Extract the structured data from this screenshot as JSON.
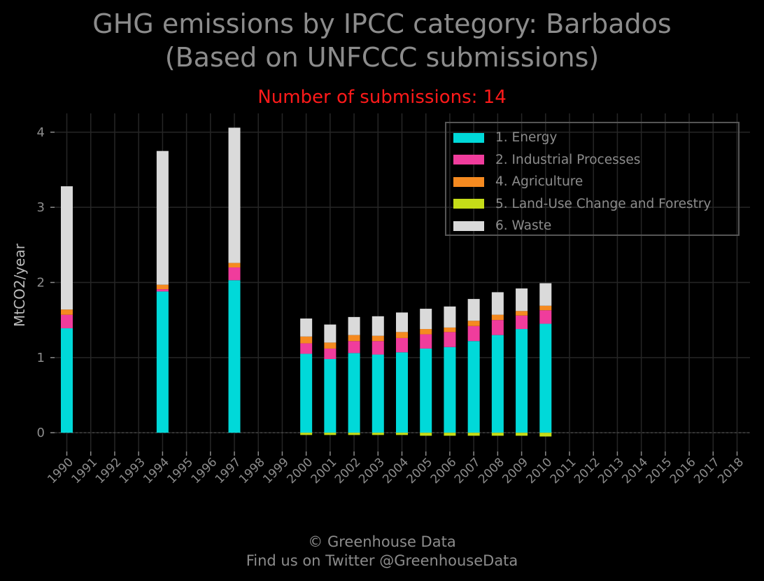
{
  "title_line1": "GHG emissions by IPCC category: Barbados",
  "title_line2": "(Based on UNFCCC submissions)",
  "subtitle": "Number of submissions: 14",
  "footer_line1": "© Greenhouse Data",
  "footer_line2": "Find us on Twitter @GreenhouseData",
  "chart_data": {
    "type": "bar",
    "stacked": true,
    "ylabel": "MtCO2/year",
    "xlabel": "",
    "ylim": [
      -0.25,
      4.25
    ],
    "yticks": [
      0,
      1,
      2,
      3,
      4
    ],
    "grid": true,
    "legend_position": "top-right",
    "categories": [
      "1990",
      "1991",
      "1992",
      "1993",
      "1994",
      "1995",
      "1996",
      "1997",
      "1998",
      "1999",
      "2000",
      "2001",
      "2002",
      "2003",
      "2004",
      "2005",
      "2006",
      "2007",
      "2008",
      "2009",
      "2010",
      "2011",
      "2012",
      "2013",
      "2014",
      "2015",
      "2016",
      "2017",
      "2018"
    ],
    "series": [
      {
        "name": "1. Energy",
        "color": "#00d9d9",
        "values": [
          1.39,
          null,
          null,
          null,
          1.88,
          null,
          null,
          2.03,
          null,
          null,
          1.05,
          0.98,
          1.06,
          1.04,
          1.07,
          1.12,
          1.14,
          1.22,
          1.3,
          1.38,
          1.45,
          null,
          null,
          null,
          null,
          null,
          null,
          null,
          null
        ]
      },
      {
        "name": "2. Industrial Processes",
        "color": "#f03c9c",
        "values": [
          0.18,
          null,
          null,
          null,
          0.03,
          null,
          null,
          0.17,
          null,
          null,
          0.14,
          0.14,
          0.16,
          0.18,
          0.19,
          0.19,
          0.2,
          0.2,
          0.2,
          0.18,
          0.18,
          null,
          null,
          null,
          null,
          null,
          null,
          null,
          null
        ]
      },
      {
        "name": "4. Agriculture",
        "color": "#f58a20",
        "values": [
          0.07,
          null,
          null,
          null,
          0.06,
          null,
          null,
          0.06,
          null,
          null,
          0.09,
          0.08,
          0.08,
          0.07,
          0.08,
          0.07,
          0.06,
          0.07,
          0.07,
          0.06,
          0.06,
          null,
          null,
          null,
          null,
          null,
          null,
          null,
          null
        ]
      },
      {
        "name": "5. Land-Use Change and Forestry",
        "color": "#c5dc18",
        "values": [
          0,
          null,
          null,
          null,
          0,
          null,
          null,
          0,
          null,
          null,
          -0.03,
          -0.03,
          -0.03,
          -0.03,
          -0.03,
          -0.04,
          -0.04,
          -0.04,
          -0.04,
          -0.04,
          -0.05,
          null,
          null,
          null,
          null,
          null,
          null,
          null,
          null
        ]
      },
      {
        "name": "6. Waste",
        "color": "#dadada",
        "values": [
          1.64,
          null,
          null,
          null,
          1.78,
          null,
          null,
          1.8,
          null,
          null,
          0.24,
          0.24,
          0.24,
          0.26,
          0.26,
          0.27,
          0.28,
          0.29,
          0.3,
          0.3,
          0.3,
          null,
          null,
          null,
          null,
          null,
          null,
          null,
          null
        ]
      }
    ]
  }
}
